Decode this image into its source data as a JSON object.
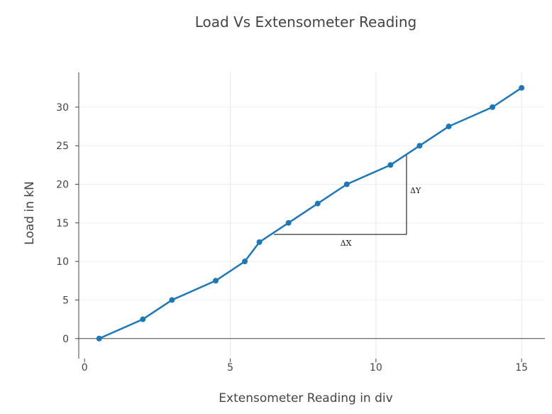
{
  "chart_data": {
    "type": "line",
    "title": "Load Vs Extensometer Reading",
    "xlabel": "Extensometer Reading in div",
    "ylabel": "Load in kN",
    "xlim": [
      -0.2,
      15.8
    ],
    "ylim": [
      -2.6,
      34.5
    ],
    "x_ticks": [
      0,
      5,
      10,
      15
    ],
    "y_ticks": [
      0,
      5,
      10,
      15,
      20,
      25,
      30
    ],
    "grid": true,
    "series": [
      {
        "color": "#1f77b4",
        "mode": "lines+markers",
        "x": [
          0.5,
          2,
          3,
          4.5,
          5.5,
          6,
          7,
          8,
          9,
          10.5,
          11.5,
          12.5,
          14,
          15
        ],
        "y": [
          0,
          2.5,
          5,
          7.5,
          10,
          12.5,
          15,
          17.5,
          20,
          22.5,
          25,
          27.5,
          30,
          32.5
        ]
      }
    ],
    "annotations": {
      "dx_label": "ΔX",
      "dy_label": "ΔY",
      "triangle": {
        "x_start": 6.5,
        "x_end": 11.05,
        "y_base": 13.5,
        "y_top": 24
      }
    }
  }
}
